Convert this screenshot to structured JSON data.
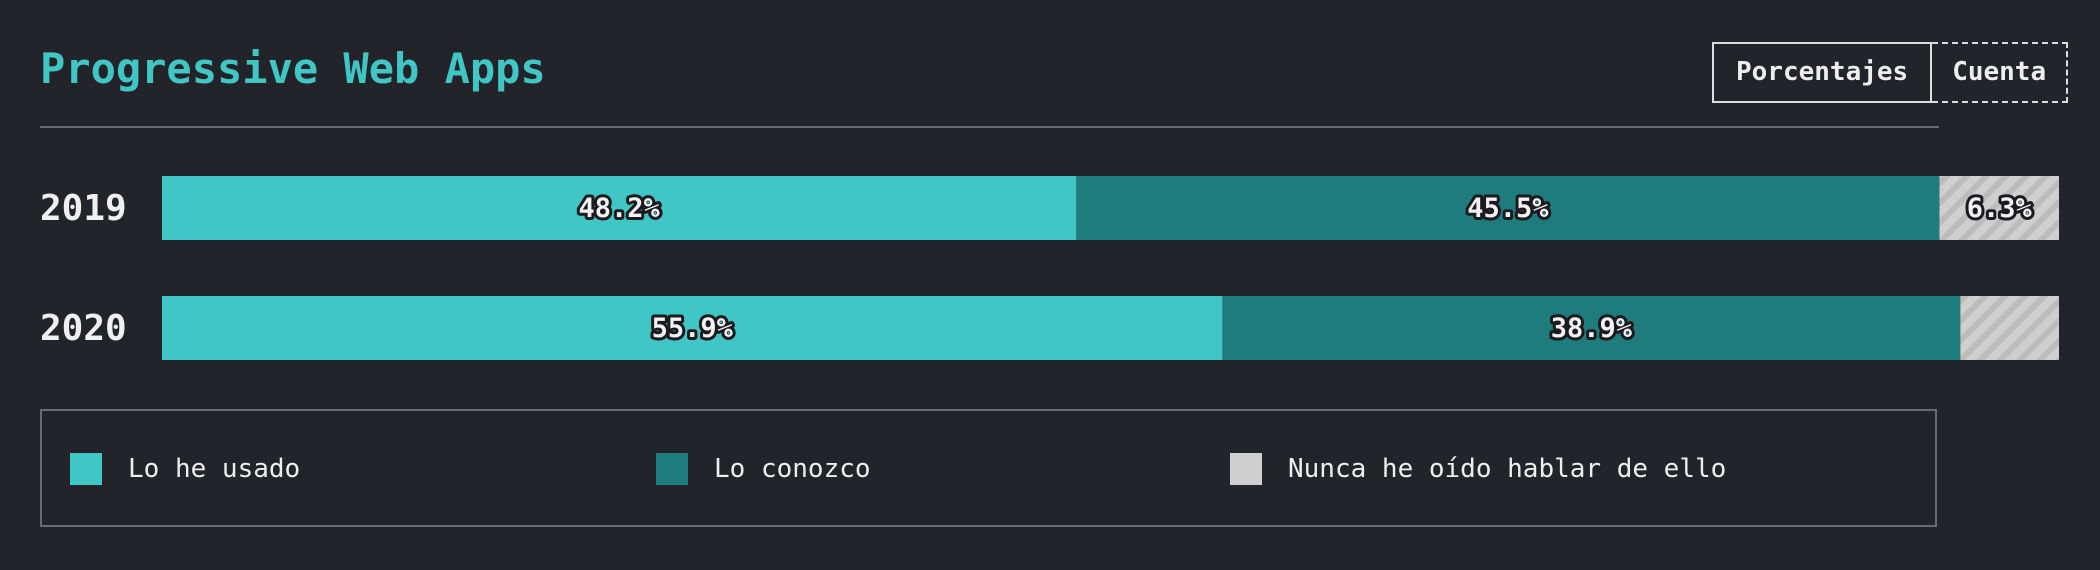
{
  "header": {
    "title": "Progressive Web Apps",
    "toggle": [
      {
        "label": "Porcentajes",
        "active": true
      },
      {
        "label": "Cuenta",
        "active": false
      }
    ]
  },
  "colors": {
    "used": "#41c6c6",
    "known": "#1f7c7c",
    "never": "#cfcfcf",
    "title": "#41c6c6"
  },
  "chart_data": {
    "type": "bar",
    "orientation": "horizontal",
    "stacked": true,
    "categories": [
      "2019",
      "2020"
    ],
    "series": [
      {
        "name": "Lo he usado",
        "values": [
          48.2,
          55.9
        ],
        "labels": [
          "48.2%",
          "55.9%"
        ],
        "color": "#41c6c6"
      },
      {
        "name": "Lo conozco",
        "values": [
          45.5,
          38.9
        ],
        "labels": [
          "45.5%",
          "38.9%"
        ],
        "color": "#1f7c7c"
      },
      {
        "name": "Nunca he oído hablar de ello",
        "values": [
          6.3,
          5.2
        ],
        "labels": [
          "6.3%",
          ""
        ],
        "color": "#cfcfcf",
        "pattern": "diagonal-stripes"
      }
    ],
    "xlim": [
      0,
      100
    ],
    "legend_position": "bottom"
  }
}
